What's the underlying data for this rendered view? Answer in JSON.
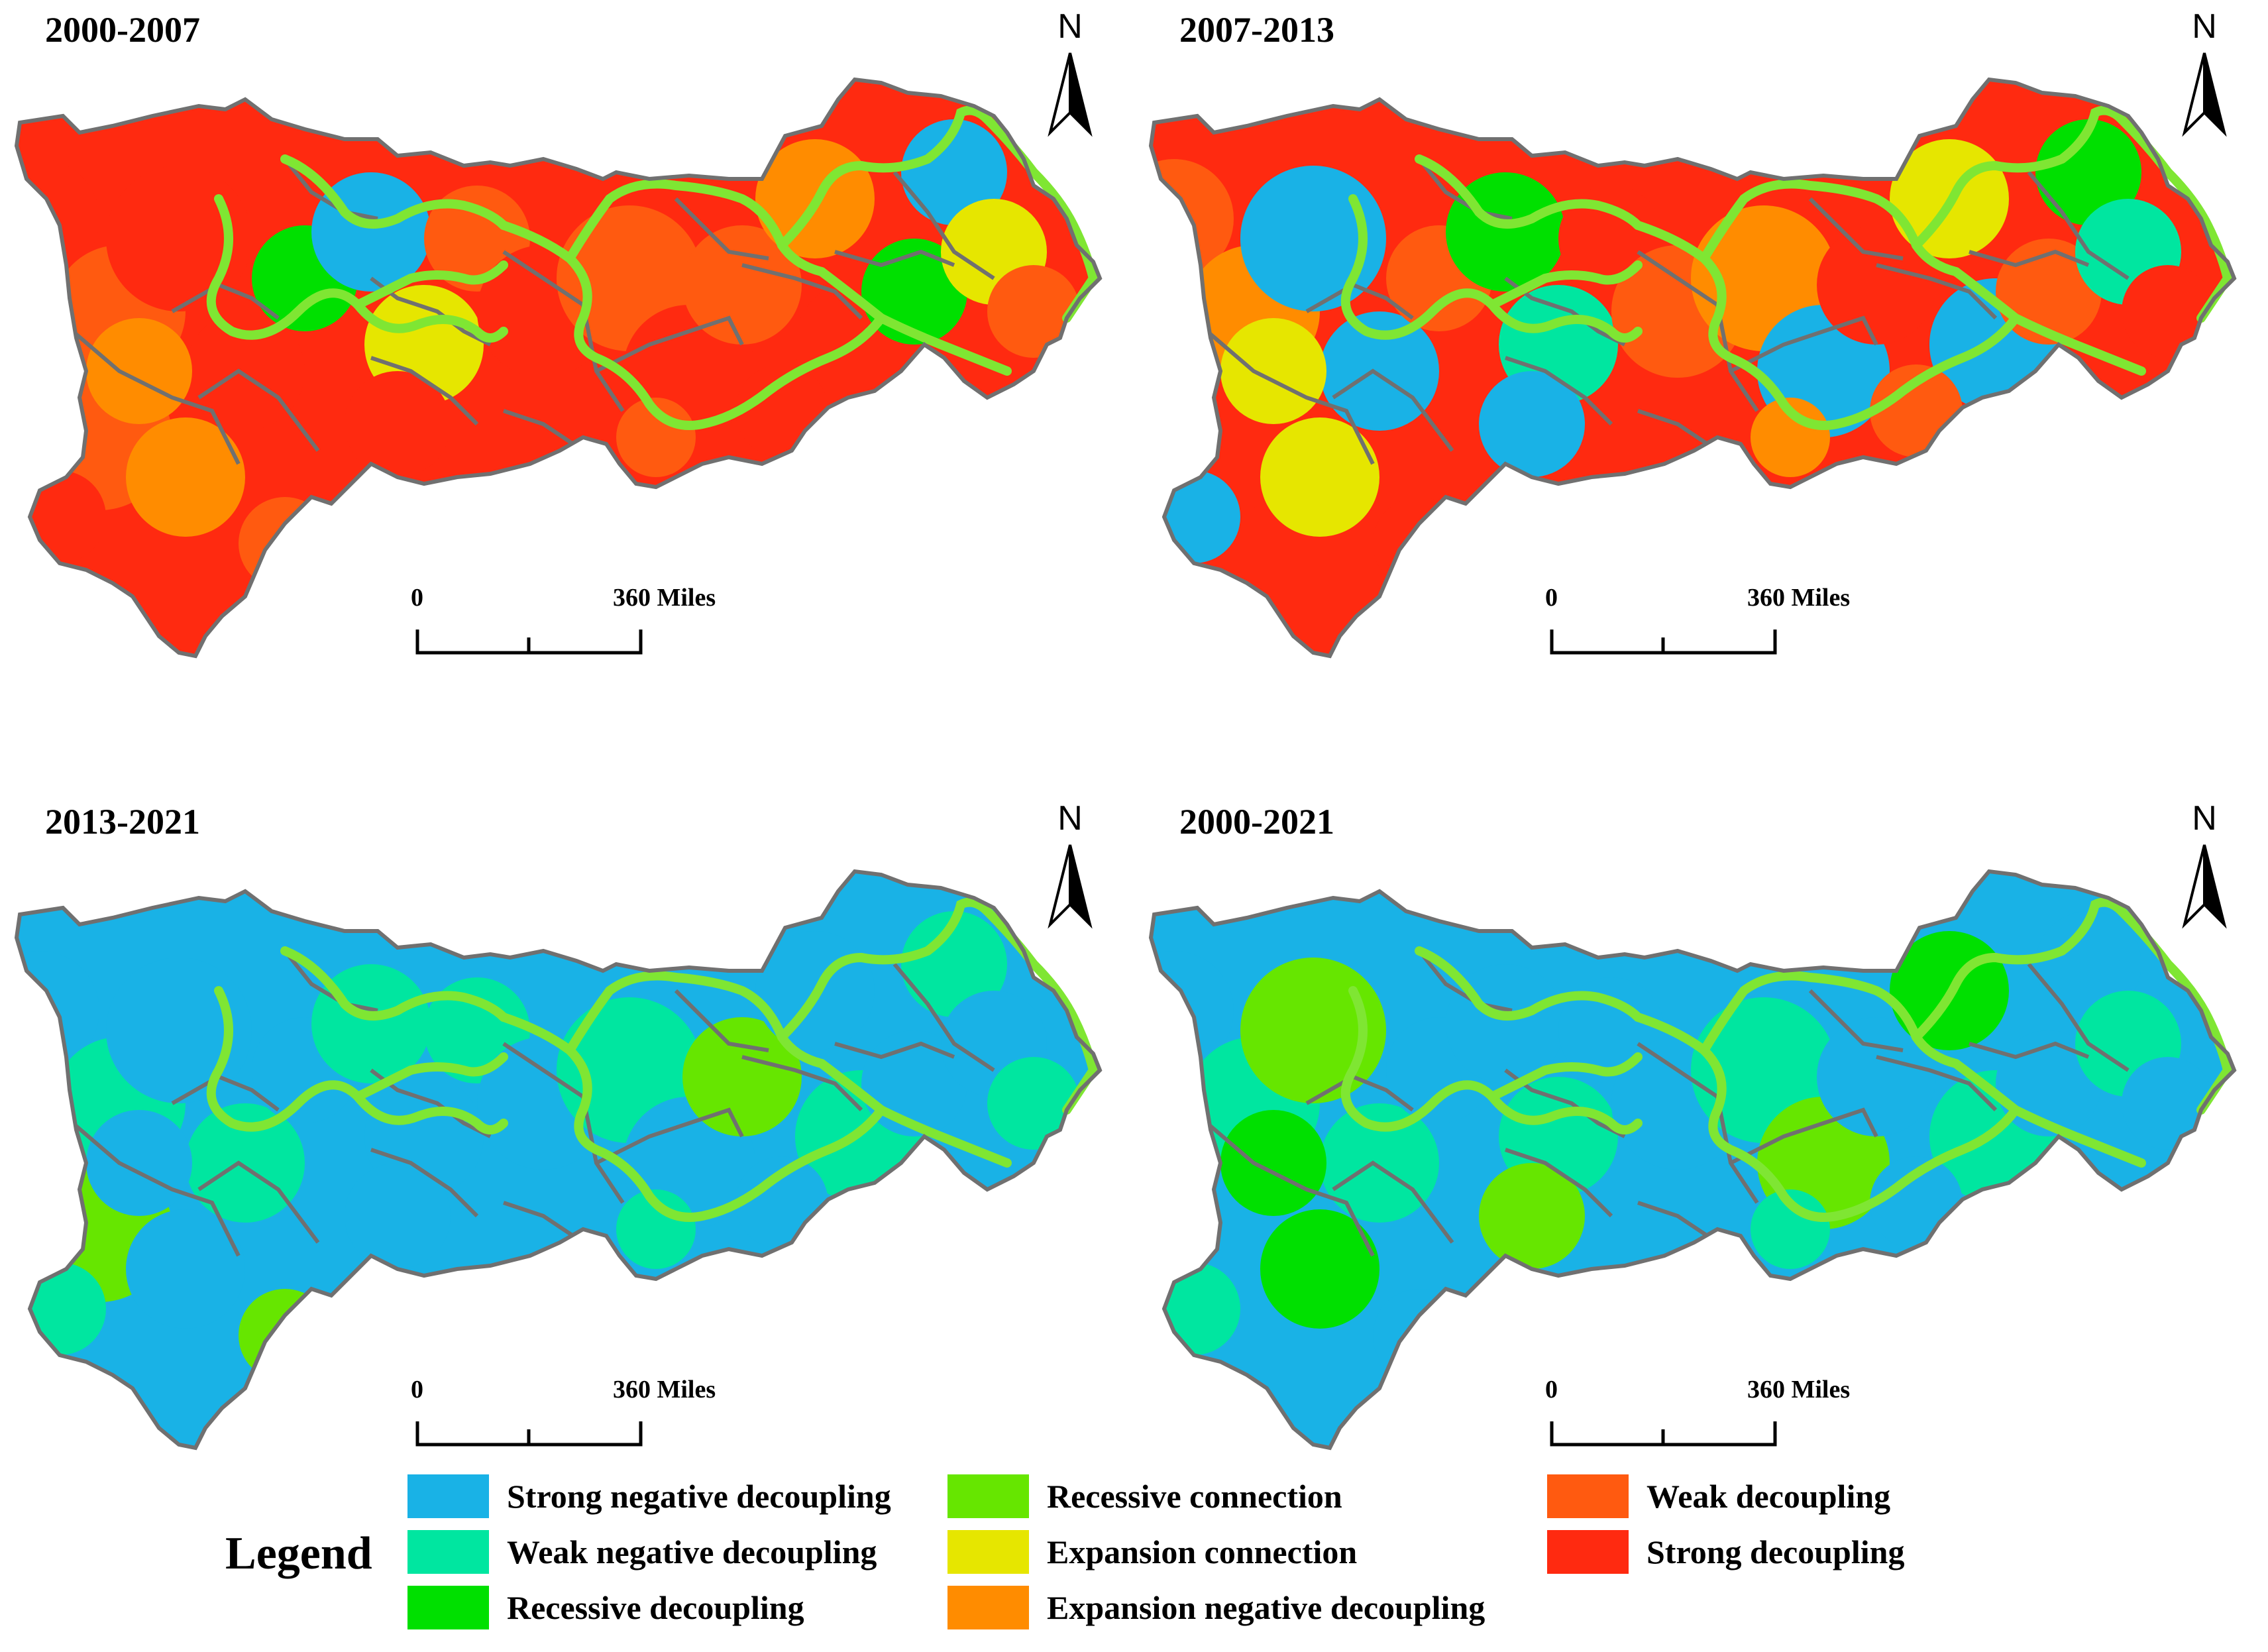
{
  "panels": [
    {
      "title": "2000-2007",
      "palette": [
        "#ff2a10",
        "#ff5a10",
        "#ff2a10",
        "#ff5a10",
        "#ff8c00",
        "#ff2a10",
        "#00e000",
        "#19b2e6",
        "#e6e600",
        "#ff5a10"
      ]
    },
    {
      "title": "2007-2013",
      "palette": [
        "#ff2a10",
        "#ff5a10",
        "#ff8c00",
        "#19b2e6",
        "#ff2a10",
        "#e6e600",
        "#19b2e6",
        "#ff5a10",
        "#00e000",
        "#00e6a0"
      ]
    },
    {
      "title": "2013-2021",
      "palette": [
        "#19b2e6",
        "#00e6a0",
        "#19b2e6",
        "#00e6a0",
        "#19b2e6",
        "#66e600",
        "#19b2e6",
        "#00e6a0",
        "#19b2e6",
        "#00e6a0"
      ]
    },
    {
      "title": "2000-2021",
      "palette": [
        "#19b2e6",
        "#00e6a0",
        "#19b2e6",
        "#19b2e6",
        "#00e6a0",
        "#66e600",
        "#19b2e6",
        "#00e000",
        "#00e6a0",
        "#19b2e6"
      ]
    }
  ],
  "north_label": "N",
  "scale": {
    "zero_label": "0",
    "max_label": "360  Miles"
  },
  "legend": {
    "title": "Legend",
    "items": [
      {
        "label": "Strong negative decoupling",
        "color": "#19b2e6"
      },
      {
        "label": "Weak negative decoupling",
        "color": "#00e6a0"
      },
      {
        "label": "Recessive decoupling",
        "color": "#00e000"
      },
      {
        "label": "Recessive connection",
        "color": "#66e600"
      },
      {
        "label": "Expansion connection",
        "color": "#e6e600"
      },
      {
        "label": "Expansion negative decoupling",
        "color": "#ff8c00"
      },
      {
        "label": "Weak decoupling",
        "color": "#ff5a10"
      },
      {
        "label": "Strong decoupling",
        "color": "#ff2a10"
      }
    ]
  },
  "colors": {
    "river": "#7fe633",
    "boundary": "#707070"
  }
}
